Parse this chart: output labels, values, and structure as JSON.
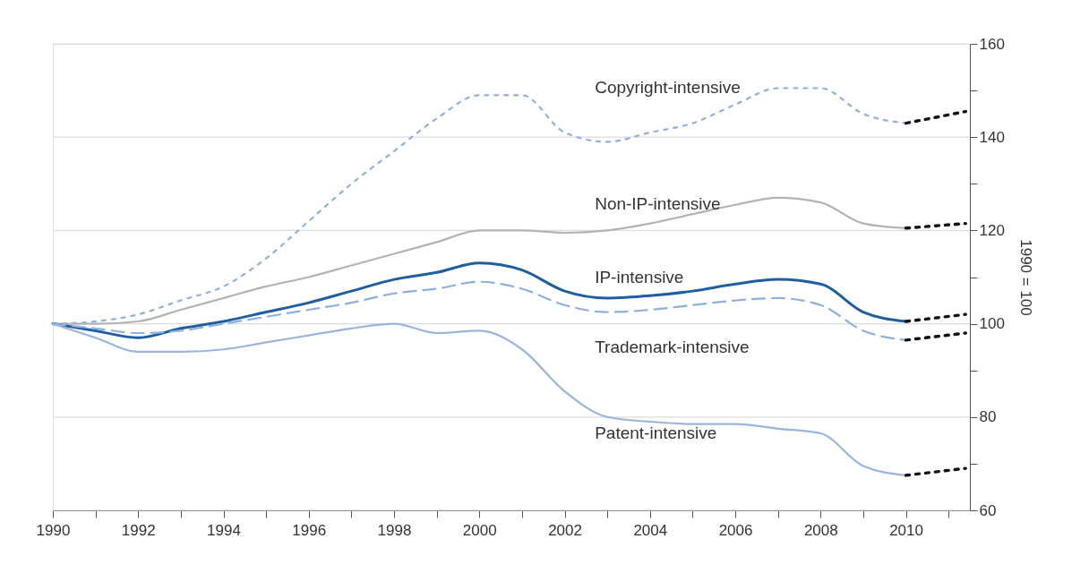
{
  "chart_data": {
    "type": "line",
    "ylabel": "1990 = 100",
    "xlim": [
      1990,
      2011.5
    ],
    "ylim": [
      60,
      160
    ],
    "xticks": [
      1990,
      {
        "value": 1991,
        "label": null
      },
      1992,
      {
        "value": 1993,
        "label": null
      },
      1994,
      {
        "value": 1995,
        "label": null
      },
      1996,
      {
        "value": 1997,
        "label": null
      },
      1998,
      {
        "value": 1999,
        "label": null
      },
      2000,
      {
        "value": 2001,
        "label": null
      },
      2002,
      {
        "value": 2003,
        "label": null
      },
      2004,
      {
        "value": 2005,
        "label": null
      },
      2006,
      {
        "value": 2007,
        "label": null
      },
      2008,
      {
        "value": 2009,
        "label": null
      },
      2010,
      {
        "value": 2011,
        "label": null
      }
    ],
    "yticks": [
      60,
      {
        "value": 70,
        "label": null
      },
      80,
      {
        "value": 90,
        "label": null
      },
      100,
      {
        "value": 110,
        "label": null
      },
      120,
      {
        "value": 130,
        "label": null
      },
      140,
      {
        "value": 150,
        "label": null
      },
      160
    ],
    "grid": "y",
    "legend": false,
    "marker": "none",
    "x": [
      1990,
      1991,
      1992,
      1993,
      1994,
      1995,
      1996,
      1997,
      1998,
      1999,
      2000,
      2001,
      2002,
      2003,
      2004,
      2005,
      2006,
      2007,
      2008,
      2009,
      2010,
      2011.4
    ],
    "series": [
      {
        "name": "Copyright-intensive",
        "color": "#8fb0dc",
        "line_style": "dotted",
        "values": [
          100,
          100.5,
          102,
          105,
          108,
          114,
          122,
          130,
          137,
          144,
          149,
          149,
          141,
          139,
          141,
          143,
          147,
          150.5,
          150.5,
          145,
          143,
          null
        ]
      },
      {
        "name": "Non-IP-intensive",
        "color": "#b3b3b3",
        "line_style": "solid",
        "values": [
          100,
          100,
          100.5,
          103,
          105.5,
          108,
          110,
          112.5,
          115,
          117.5,
          120,
          120,
          119.5,
          120,
          121.5,
          123.5,
          125.5,
          127,
          126,
          121.5,
          120.5,
          null
        ]
      },
      {
        "name": "IP-intensive",
        "color": "#1f5fa0",
        "line_style": "solid",
        "values": [
          100,
          98.5,
          97,
          99,
          100.5,
          102.5,
          104.5,
          107,
          109.5,
          111,
          113,
          111.5,
          107,
          105.5,
          106,
          107,
          108.5,
          109.5,
          108.5,
          102.5,
          100.5,
          null
        ]
      },
      {
        "name": "Trademark-intensive",
        "color": "#8fb0dc",
        "line_style": "dashed",
        "values": [
          100,
          99,
          98,
          98.5,
          100,
          101.5,
          103,
          104.5,
          106.5,
          107.5,
          109,
          107.5,
          104,
          102.5,
          103,
          104,
          105,
          105.5,
          104,
          98.5,
          96.5,
          null
        ]
      },
      {
        "name": "Patent-intensive",
        "color": "#9ab5dd",
        "line_style": "solid",
        "values": [
          100,
          97,
          94,
          94,
          94.5,
          96,
          97.5,
          99,
          100,
          98,
          98.5,
          94.5,
          85.5,
          80,
          79,
          78.5,
          78.5,
          77.5,
          76.5,
          69.5,
          67.5,
          null
        ]
      },
      {
        "color": "#111111",
        "line_style": "dotted",
        "values": [
          null,
          null,
          null,
          null,
          null,
          null,
          null,
          null,
          null,
          null,
          null,
          null,
          null,
          null,
          null,
          null,
          null,
          null,
          null,
          null,
          143,
          145.5
        ]
      },
      {
        "color": "#111111",
        "line_style": "dotted",
        "values": [
          null,
          null,
          null,
          null,
          null,
          null,
          null,
          null,
          null,
          null,
          null,
          null,
          null,
          null,
          null,
          null,
          null,
          null,
          null,
          null,
          120.5,
          121.5
        ]
      },
      {
        "color": "#111111",
        "line_style": "dotted",
        "values": [
          null,
          null,
          null,
          null,
          null,
          null,
          null,
          null,
          null,
          null,
          null,
          null,
          null,
          null,
          null,
          null,
          null,
          null,
          null,
          null,
          100.5,
          102
        ]
      },
      {
        "color": "#111111",
        "line_style": "dotted",
        "values": [
          null,
          null,
          null,
          null,
          null,
          null,
          null,
          null,
          null,
          null,
          null,
          null,
          null,
          null,
          null,
          null,
          null,
          null,
          null,
          null,
          96.5,
          98
        ]
      },
      {
        "color": "#111111",
        "line_style": "dotted",
        "values": [
          null,
          null,
          null,
          null,
          null,
          null,
          null,
          null,
          null,
          null,
          null,
          null,
          null,
          null,
          null,
          null,
          null,
          null,
          null,
          null,
          67.5,
          69
        ]
      }
    ]
  }
}
